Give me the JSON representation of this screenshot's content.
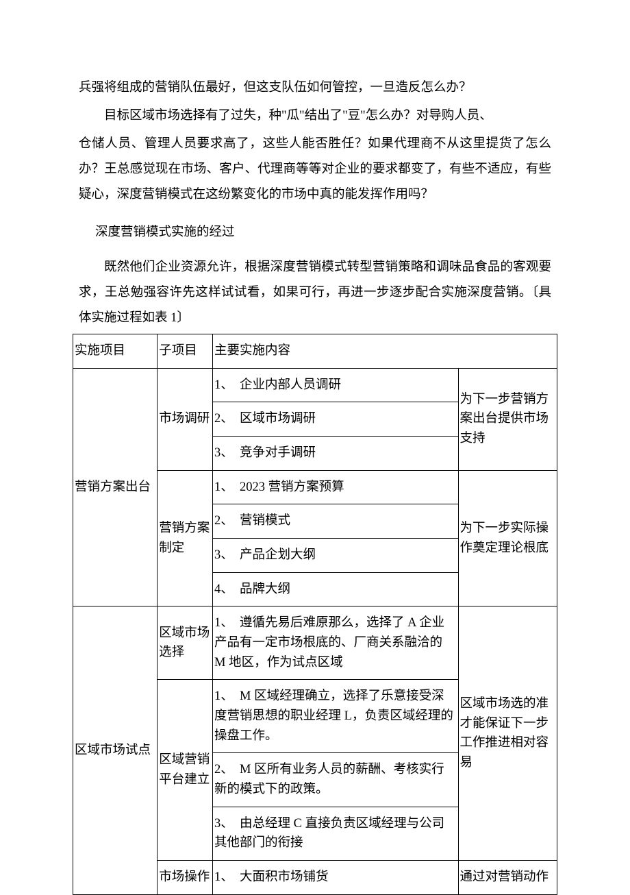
{
  "paragraphs": {
    "p1": "兵强将组成的营销队伍最好，但这支队伍如何管控，一旦造反怎么办？",
    "p2": "目标区域市场选择有了过失，种\"瓜\"结出了\"豆\"怎么办？对导购人员、",
    "p3": "仓储人员、管理人员要求高了，这些人能否胜任？如果代理商不从这里提货了怎么办？王总感觉现在市场、客户、代理商等等对企业的要求都变了，有些不适应，有些疑心，深度营销模式在这纷繁变化的市场中真的能发挥作用吗？",
    "sectionTitle": "深度营销模式实施的经过",
    "p4": "既然他们企业资源允许，根据深度营销模式转型营销策略和调味品食品的客观要求，王总勉强容许先这样试试看，如果可行，再进一步逐步配合实施深度营销。〔具体实施过程如表 1〕"
  },
  "table": {
    "header": {
      "c1": "实施项目",
      "c2": "子项目",
      "c3": "主要实施内容",
      "c4": ""
    },
    "section1": {
      "project": "营销方案出台",
      "sub1": {
        "name": "市场调研",
        "rows": {
          "r1": "1、　企业内部人员调研",
          "r2": "2、　区域市场调研",
          "r3": "3、　竞争对手调研"
        },
        "right": "为下一步营销方案出台提供市场支持"
      },
      "sub2": {
        "name": "营销方案制定",
        "rows": {
          "r1": "1、　2023 营销方案预算",
          "r2": "2、　营销模式",
          "r3": "3、　产品企划大纲",
          "r4": "4、　品牌大纲"
        },
        "right": "为下一步实际操作奠定理论根底"
      }
    },
    "section2": {
      "project": "区域市场试点",
      "sub1": {
        "name": "区域市场选择",
        "rows": {
          "r1": "1、　遵循先易后难原那么，选择了 A 企业产品有一定市场根底的、厂商关系融洽的 M 地区，作为试点区域"
        }
      },
      "sub2": {
        "name": "区域营销平台建立",
        "rows": {
          "r1": "1、　M 区域经理确立，选择了乐意接受深度营销思想的职业经理 L，负责区域经理的操盘工作。",
          "r2": "2、　M 区所有业务人员的薪酬、考核实行新的模式下的政策。",
          "r3": "3、　由总经理 C 直接负责区域经理与公司其他部门的衔接"
        }
      },
      "right": "区域市场选的准才能保证下一步工作推进相对容易",
      "sub3": {
        "name": "市场操作",
        "rows": {
          "r1": "1、　大面积市场铺货"
        },
        "right": "通过对营销动作"
      }
    }
  }
}
